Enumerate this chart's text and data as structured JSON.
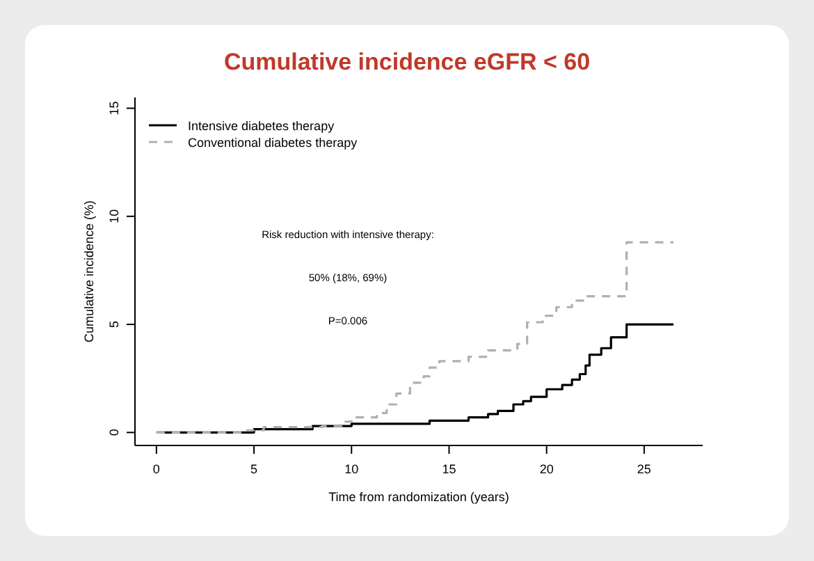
{
  "chart_data": {
    "type": "step",
    "title": "Cumulative incidence eGFR < 60",
    "xlabel": "Time from randomization (years)",
    "ylabel": "Cumulative incidence (%)",
    "annotations": [
      "Risk reduction with intensive therapy:",
      "50% (18%, 69%)",
      "P=0.006"
    ],
    "xlim": [
      -1.1,
      28
    ],
    "ylim": [
      -0.6,
      15.5
    ],
    "xticks": [
      0,
      5,
      10,
      15,
      20,
      25
    ],
    "yticks": [
      0,
      5,
      10,
      15
    ],
    "grid": false,
    "legend": "top left",
    "series": [
      {
        "name": "Intensive diabetes therapy",
        "color": "#000000",
        "line_style": "solid",
        "x": [
          0,
          5,
          8,
          10,
          14,
          16,
          17,
          17.5,
          18.3,
          18.8,
          19.2,
          20,
          20.8,
          21.3,
          21.7,
          22,
          22.2,
          22.8,
          23.3,
          24.1,
          26.5
        ],
        "values": [
          0,
          0.15,
          0.3,
          0.4,
          0.55,
          0.7,
          0.85,
          1,
          1.3,
          1.45,
          1.65,
          2,
          2.2,
          2.45,
          2.7,
          3.1,
          3.6,
          3.9,
          4.4,
          5,
          5
        ]
      },
      {
        "name": "Conventional diabetes therapy",
        "color": "#b0b0b0",
        "line_style": "dashed",
        "x": [
          0,
          4.5,
          5.5,
          8.5,
          9.5,
          10,
          11.3,
          11.8,
          12.3,
          13,
          13.7,
          14,
          14.5,
          16,
          17,
          18.5,
          19,
          19.8,
          20.5,
          21.3,
          22,
          24.1,
          26.5
        ],
        "values": [
          0,
          0.1,
          0.25,
          0.3,
          0.5,
          0.7,
          0.9,
          1.3,
          1.8,
          2.3,
          2.6,
          3,
          3.3,
          3.5,
          3.8,
          4.1,
          5.1,
          5.4,
          5.8,
          6.1,
          6.3,
          8.8,
          8.8
        ]
      }
    ]
  }
}
